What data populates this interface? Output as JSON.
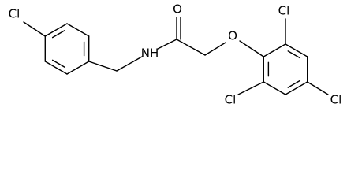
{
  "atoms": [
    {
      "label": "Cl"
    },
    {
      "label": "NH"
    },
    {
      "label": "O"
    },
    {
      "label": "O"
    },
    {
      "label": "Cl"
    },
    {
      "label": "Cl"
    },
    {
      "label": "Cl"
    }
  ]
}
